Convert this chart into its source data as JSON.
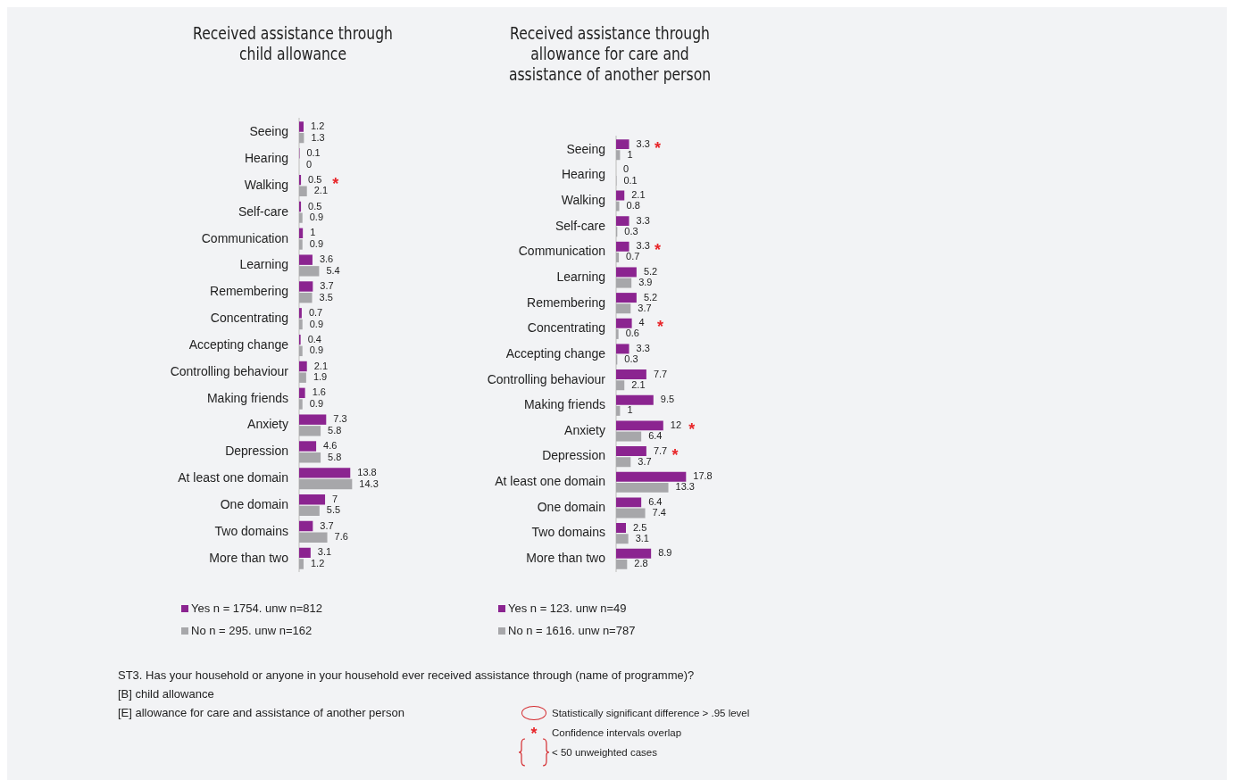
{
  "chart_data": [
    {
      "type": "bar",
      "orientation": "horizontal",
      "title": "Received assistance through child allowance",
      "categories": [
        "Seeing",
        "Hearing",
        "Walking",
        "Self-care",
        "Communication",
        "Learning",
        "Remembering",
        "Concentrating",
        "Accepting change",
        "Controlling behaviour",
        "Making friends",
        "Anxiety",
        "Depression",
        "At least one domain",
        "One domain",
        "Two domains",
        "More than two"
      ],
      "series": [
        {
          "name": "Yes n = 1754. unw n=812",
          "color": "#8b2490",
          "values": [
            1.2,
            0.1,
            0.5,
            0.5,
            1,
            3.6,
            3.7,
            0.7,
            0.4,
            2.1,
            1.6,
            7.3,
            4.6,
            13.8,
            7,
            3.7,
            3.1
          ]
        },
        {
          "name": "No n = 295. unw n=162",
          "color": "#a7a7aa",
          "values": [
            1.3,
            0,
            2.1,
            0.9,
            0.9,
            5.4,
            3.5,
            0.9,
            0.9,
            1.9,
            0.9,
            5.8,
            5.8,
            14.3,
            5.5,
            7.6,
            1.2
          ]
        }
      ],
      "tick_labels": "y",
      "data_labels": true,
      "legend": "bottom",
      "grid": false,
      "annotations": [
        {
          "text": "*",
          "x": 2.1,
          "y": "Walking"
        },
        "ST3. Has your household or anyone in your household ever received assistance through (name of programme)?",
        "[B] child allowance",
        "[E] allowance for care and assistance of another person",
        "Statistically significant difference > .95 level",
        "Confidence intervals overlap",
        "< 50 unweighted cases"
      ]
    },
    {
      "type": "bar",
      "orientation": "horizontal",
      "title": "Received assistance through allowance for care and assistance of another person",
      "categories": [
        "Seeing",
        "Hearing",
        "Walking",
        "Self-care",
        "Communication",
        "Learning",
        "Remembering",
        "Concentrating",
        "Accepting change",
        "Controlling behaviour",
        "Making friends",
        "Anxiety",
        "Depression",
        "At least one domain",
        "One domain",
        "Two domains",
        "More than two"
      ],
      "series": [
        {
          "name": "Yes n = 123. unw n=49",
          "color": "#8b2490",
          "values": [
            3.3,
            0,
            2.1,
            3.3,
            3.3,
            5.2,
            5.2,
            4,
            3.3,
            7.7,
            9.5,
            12,
            7.7,
            17.8,
            6.4,
            2.5,
            8.9
          ]
        },
        {
          "name": "No n = 1616. unw n=787",
          "color": "#a7a7aa",
          "values": [
            1,
            0.1,
            0.8,
            0.3,
            0.7,
            3.9,
            3.7,
            0.6,
            0.3,
            2.1,
            1,
            6.4,
            3.7,
            13.3,
            7.4,
            3.1,
            2.8
          ]
        }
      ],
      "tick_labels": "y",
      "data_labels": true,
      "legend": "bottom",
      "grid": false,
      "annotations": [
        {
          "text": "*",
          "x": 3.3,
          "y": "Seeing"
        },
        {
          "text": "*",
          "x": 3.3,
          "y": "Communication"
        },
        {
          "text": "*",
          "x": 4,
          "y": "Concentrating"
        },
        {
          "text": "*",
          "x": 12,
          "y": "Anxiety"
        },
        {
          "text": "*",
          "x": 7.7,
          "y": "Depression"
        }
      ]
    }
  ]
}
